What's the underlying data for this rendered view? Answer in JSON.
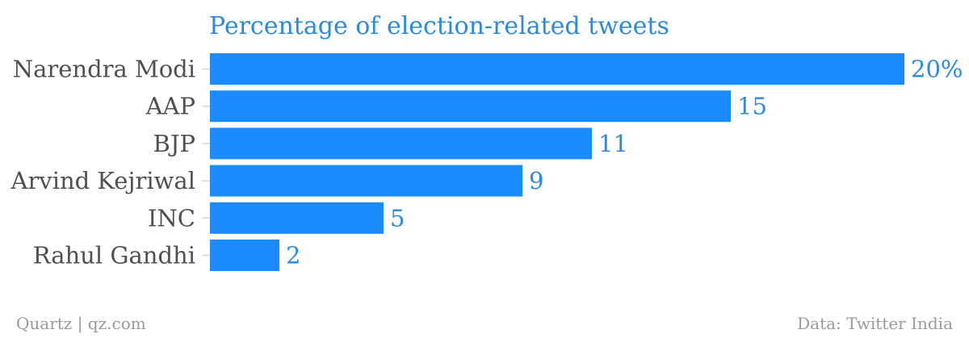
{
  "chart_data": {
    "type": "bar",
    "orientation": "horizontal",
    "title": "Percentage of election-related tweets",
    "categories": [
      "Narendra Modi",
      "AAP",
      "BJP",
      "Arvind Kejriwal",
      "INC",
      "Rahul Gandhi"
    ],
    "values": [
      20,
      15,
      11,
      9,
      5,
      2
    ],
    "value_labels": [
      "20%",
      "15",
      "11",
      "9",
      "5",
      "2"
    ],
    "xlim": [
      0,
      20
    ],
    "grid": false,
    "bar_color": "#1a8cff",
    "title_color": "#2a8ae2",
    "label_color": "#505050"
  },
  "footer": {
    "source_left": "Quartz | qz.com",
    "source_right": "Data: Twitter India"
  }
}
